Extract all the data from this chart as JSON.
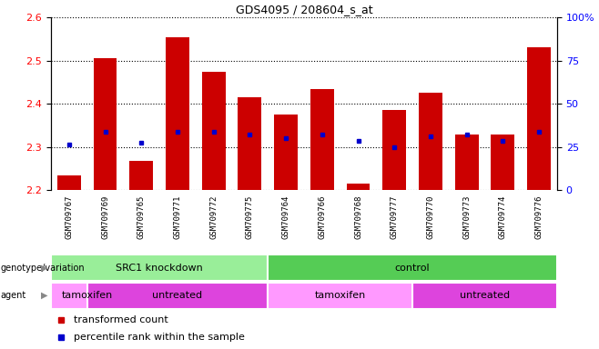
{
  "title": "GDS4095 / 208604_s_at",
  "samples": [
    "GSM709767",
    "GSM709769",
    "GSM709765",
    "GSM709771",
    "GSM709772",
    "GSM709775",
    "GSM709764",
    "GSM709766",
    "GSM709768",
    "GSM709777",
    "GSM709770",
    "GSM709773",
    "GSM709774",
    "GSM709776"
  ],
  "transformed_counts": [
    2.235,
    2.505,
    2.268,
    2.555,
    2.475,
    2.415,
    2.375,
    2.435,
    2.215,
    2.385,
    2.425,
    2.33,
    2.33,
    2.53
  ],
  "percentile_left": [
    2.305,
    2.335,
    2.31,
    2.335,
    2.335,
    2.33,
    2.32,
    2.33,
    2.315,
    2.3,
    2.325,
    2.33,
    2.315,
    2.335
  ],
  "ylim_left": [
    2.2,
    2.6
  ],
  "ylim_right": [
    0,
    100
  ],
  "yticks_left": [
    2.2,
    2.3,
    2.4,
    2.5,
    2.6
  ],
  "yticks_right": [
    0,
    25,
    50,
    75,
    100
  ],
  "ytick_right_labels": [
    "0",
    "25",
    "50",
    "75",
    "100%"
  ],
  "bar_color": "#cc0000",
  "dot_color": "#0000cc",
  "bar_bottom": 2.2,
  "gv_groups": [
    {
      "text": "SRC1 knockdown",
      "start": 0,
      "end": 5,
      "color": "#99ee99"
    },
    {
      "text": "control",
      "start": 6,
      "end": 13,
      "color": "#55cc55"
    }
  ],
  "ag_groups": [
    {
      "text": "tamoxifen",
      "start": 0,
      "end": 1,
      "color": "#ff99ff"
    },
    {
      "text": "untreated",
      "start": 1,
      "end": 5,
      "color": "#dd44dd"
    },
    {
      "text": "tamoxifen",
      "start": 6,
      "end": 9,
      "color": "#ff99ff"
    },
    {
      "text": "untreated",
      "start": 10,
      "end": 13,
      "color": "#dd44dd"
    }
  ],
  "label_gv": "genotype/variation",
  "label_ag": "agent",
  "legend_items": [
    {
      "color": "#cc0000",
      "label": "transformed count"
    },
    {
      "color": "#0000cc",
      "label": "percentile rank within the sample"
    }
  ]
}
